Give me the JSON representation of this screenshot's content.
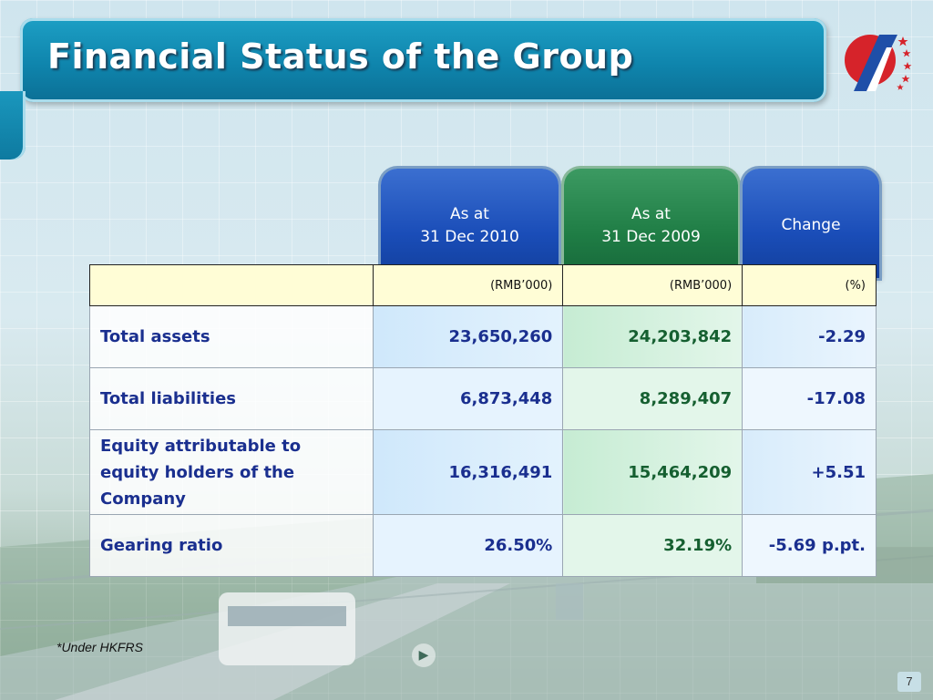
{
  "slide": {
    "title": "Financial Status of the Group",
    "footnote": "*Under HKFRS",
    "page_number": "7"
  },
  "table": {
    "columns": [
      {
        "line1": "As at",
        "line2": "31 Dec 2010",
        "unit": "(RMB’000)",
        "color": "#1a4db8"
      },
      {
        "line1": "As at",
        "line2": "31 Dec 2009",
        "unit": "(RMB’000)",
        "color": "#1f7d45"
      },
      {
        "line1": "Change",
        "line2": "",
        "unit": "(%)",
        "color": "#1a4db8"
      }
    ],
    "rows": [
      {
        "label_lines": [
          "Total assets"
        ],
        "values": [
          "23,650,260",
          "24,203,842",
          "-2.29"
        ]
      },
      {
        "label_lines": [
          "Total liabilities"
        ],
        "values": [
          "6,873,448",
          "8,289,407",
          "-17.08"
        ]
      },
      {
        "label_lines": [
          "Equity attributable to",
          "equity holders of the",
          "Company"
        ],
        "values": [
          "16,316,491",
          "15,464,209",
          "+5.51"
        ]
      },
      {
        "label_lines": [
          "Gearing ratio"
        ],
        "values": [
          "26.50%",
          "32.19%",
          "-5.69 p.pt."
        ]
      }
    ]
  },
  "colors": {
    "title_bar": "#0f85ad",
    "header_blue": "#1a4db8",
    "header_green": "#1f7d45",
    "units_row": "#fffdd6",
    "text_blue": "#1a2f8f"
  }
}
